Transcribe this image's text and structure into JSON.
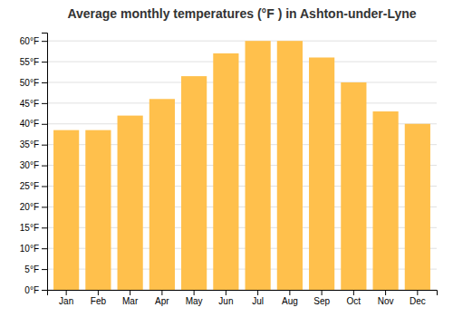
{
  "chart_data": {
    "type": "bar",
    "title": "Average monthly temperatures (°F ) in Ashton-under-Lyne",
    "categories": [
      "Jan",
      "Feb",
      "Mar",
      "Apr",
      "May",
      "Jun",
      "Jul",
      "Aug",
      "Sep",
      "Oct",
      "Nov",
      "Dec"
    ],
    "values": [
      38.5,
      38.5,
      42,
      46,
      51.5,
      57,
      60,
      60,
      56,
      50,
      43,
      40
    ],
    "color": "#FFC04C",
    "ylim": [
      0,
      62
    ],
    "yticks": [
      {
        "value": 0,
        "label": "0°F"
      },
      {
        "value": 5,
        "label": "5°F"
      },
      {
        "value": 10,
        "label": "10°F"
      },
      {
        "value": 15,
        "label": "15°F"
      },
      {
        "value": 20,
        "label": "20°F"
      },
      {
        "value": 25,
        "label": "25°F"
      },
      {
        "value": 30,
        "label": "30°F"
      },
      {
        "value": 35,
        "label": "35°F"
      },
      {
        "value": 40,
        "label": "40°F"
      },
      {
        "value": 45,
        "label": "45°F"
      },
      {
        "value": 50,
        "label": "50°F"
      },
      {
        "value": 55,
        "label": "55°F"
      },
      {
        "value": 60,
        "label": "60°F"
      }
    ],
    "grid": true
  }
}
